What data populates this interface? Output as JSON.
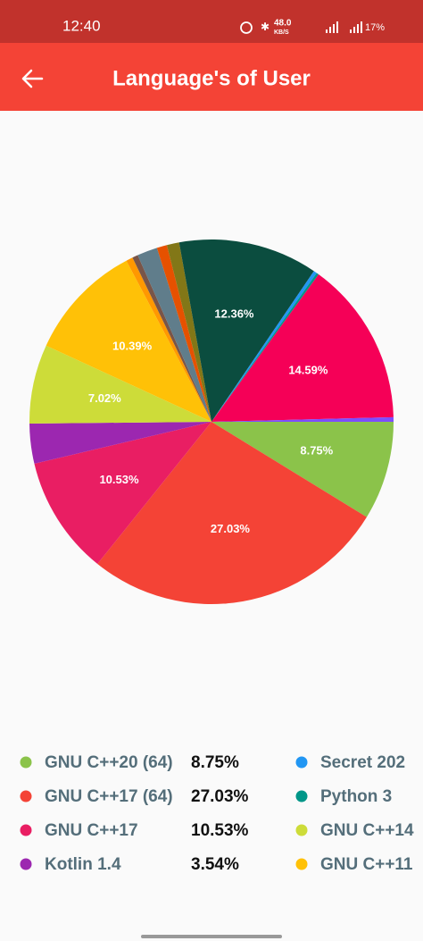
{
  "status_bar": {
    "time": "12:40",
    "speed": "48.0",
    "speed_unit": "KB/S",
    "battery": "17%"
  },
  "header": {
    "title": "Language's of User"
  },
  "chart_data": {
    "type": "pie",
    "values": [
      8.75,
      27.03,
      10.53,
      3.54,
      7.02,
      10.39,
      0.6,
      0.5,
      1.8,
      0.9,
      1.1,
      12.36,
      0.3,
      0.2,
      14.59,
      0.4
    ],
    "value_labels": [
      "8.75%",
      "27.03%",
      "10.53%",
      null,
      "7.02%",
      "10.39%",
      null,
      null,
      null,
      null,
      null,
      "12.36%",
      null,
      null,
      "14.59%",
      null
    ],
    "colors": [
      "#8bc34a",
      "#f44336",
      "#e91e63",
      "#9c27b0",
      "#cddc39",
      "#ffc107",
      "#ff9800",
      "#795548",
      "#607d8b",
      "#e65100",
      "#827717",
      "#0b4d3f",
      "#2196f3",
      "#009688",
      "#f50057",
      "#7c4dff"
    ],
    "legend": [
      {
        "name": "GNU C++20 (64)",
        "color": "#8bc34a",
        "value": "8.75%"
      },
      {
        "name": "GNU C++17 (64)",
        "color": "#f44336",
        "value": "27.03%"
      },
      {
        "name": "GNU C++17",
        "color": "#e91e63",
        "value": "10.53%"
      },
      {
        "name": "Kotlin 1.4",
        "color": "#9c27b0",
        "value": "3.54%"
      },
      {
        "name": "Secret 202",
        "color": "#2196f3"
      },
      {
        "name": "Python 3",
        "color": "#009688"
      },
      {
        "name": "GNU C++14",
        "color": "#cddc39"
      },
      {
        "name": "GNU C++11",
        "color": "#ffc107"
      }
    ]
  }
}
